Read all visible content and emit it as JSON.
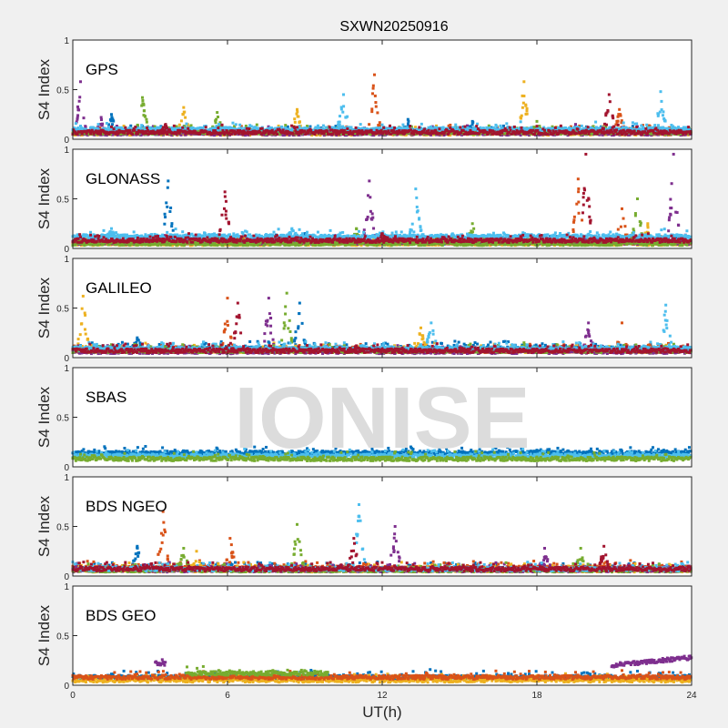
{
  "chart_data": {
    "type": "scatter",
    "title": "SXWN20250916",
    "xlabel": "UT(h)",
    "ylabel": "S4 Index",
    "xlim": [
      0,
      24
    ],
    "ylim": [
      0,
      1
    ],
    "xticks": [
      "0",
      "6",
      "12",
      "18",
      "24"
    ],
    "yticks": [
      "0",
      "0.5",
      "1"
    ],
    "watermark": "IONISE",
    "colors": [
      "#0072BD",
      "#D95319",
      "#EDB120",
      "#7E2F8E",
      "#77AC30",
      "#4DBEEE",
      "#A2142F"
    ],
    "panels": [
      {
        "label": "GPS",
        "series": [
          {
            "color": 0,
            "base": 0.07,
            "range": [
              0,
              24
            ],
            "spikes": [
              [
                1.5,
                0.25
              ],
              [
                13,
                0.2
              ],
              [
                15.5,
                0.18
              ]
            ]
          },
          {
            "color": 1,
            "base": 0.07,
            "range": [
              0,
              24
            ],
            "spikes": [
              [
                11.7,
                0.65
              ],
              [
                21.2,
                0.3
              ]
            ]
          },
          {
            "color": 2,
            "base": 0.06,
            "range": [
              0,
              24
            ],
            "spikes": [
              [
                4.3,
                0.32
              ],
              [
                8.7,
                0.3
              ],
              [
                17.5,
                0.58
              ]
            ]
          },
          {
            "color": 3,
            "base": 0.06,
            "range": [
              0,
              24
            ],
            "spikes": [
              [
                0.3,
                0.58
              ],
              [
                1.1,
                0.22
              ],
              [
                19.5,
                0.15
              ]
            ]
          },
          {
            "color": 4,
            "base": 0.07,
            "range": [
              0,
              24
            ],
            "spikes": [
              [
                2.7,
                0.42
              ],
              [
                5.6,
                0.27
              ],
              [
                18,
                0.18
              ]
            ]
          },
          {
            "color": 5,
            "base": 0.1,
            "range": [
              0,
              24
            ],
            "spikes": [
              [
                10.5,
                0.45
              ],
              [
                22.8,
                0.48
              ]
            ]
          },
          {
            "color": 6,
            "base": 0.07,
            "range": [
              0,
              24
            ],
            "spikes": [
              [
                20.8,
                0.45
              ],
              [
                3.6,
                0.15
              ]
            ]
          }
        ]
      },
      {
        "label": "GLONASS",
        "series": [
          {
            "color": 0,
            "base": 0.06,
            "range": [
              0,
              24
            ],
            "spikes": [
              [
                3.7,
                0.68
              ],
              [
                9,
                0.15
              ]
            ]
          },
          {
            "color": 1,
            "base": 0.06,
            "range": [
              0,
              24
            ],
            "spikes": [
              [
                19.6,
                0.7
              ],
              [
                21.3,
                0.4
              ]
            ]
          },
          {
            "color": 2,
            "base": 0.05,
            "range": [
              0,
              24
            ],
            "spikes": [
              [
                22.3,
                0.25
              ],
              [
                10,
                0.12
              ]
            ]
          },
          {
            "color": 3,
            "base": 0.06,
            "range": [
              0,
              24
            ],
            "spikes": [
              [
                11.5,
                0.68
              ],
              [
                23.3,
                0.95
              ]
            ]
          },
          {
            "color": 4,
            "base": 0.05,
            "range": [
              0,
              24
            ],
            "spikes": [
              [
                15.5,
                0.25
              ],
              [
                21.9,
                0.5
              ],
              [
                11,
                0.2
              ]
            ]
          },
          {
            "color": 5,
            "base": 0.12,
            "range": [
              0,
              24
            ],
            "spikes": [
              [
                1.5,
                0.2
              ],
              [
                8.5,
                0.2
              ],
              [
                13.3,
                0.6
              ]
            ]
          },
          {
            "color": 6,
            "base": 0.08,
            "range": [
              0,
              24
            ],
            "spikes": [
              [
                5.9,
                0.57
              ],
              [
                19.9,
                0.95
              ],
              [
                12,
                0.15
              ]
            ]
          }
        ]
      },
      {
        "label": "GALILEO",
        "series": [
          {
            "color": 0,
            "base": 0.09,
            "range": [
              0,
              24
            ],
            "spikes": [
              [
                8.8,
                0.55
              ],
              [
                2.5,
                0.2
              ]
            ]
          },
          {
            "color": 1,
            "base": 0.07,
            "range": [
              0,
              24
            ],
            "spikes": [
              [
                6,
                0.6
              ],
              [
                21.3,
                0.35
              ]
            ]
          },
          {
            "color": 2,
            "base": 0.07,
            "range": [
              0,
              24
            ],
            "spikes": [
              [
                0.4,
                0.62
              ],
              [
                13.5,
                0.3
              ]
            ]
          },
          {
            "color": 3,
            "base": 0.06,
            "range": [
              0,
              24
            ],
            "spikes": [
              [
                7.6,
                0.6
              ],
              [
                20,
                0.35
              ]
            ]
          },
          {
            "color": 4,
            "base": 0.07,
            "range": [
              0,
              24
            ],
            "spikes": [
              [
                8.3,
                0.65
              ],
              [
                17.5,
                0.15
              ]
            ]
          },
          {
            "color": 5,
            "base": 0.09,
            "range": [
              0,
              24
            ],
            "spikes": [
              [
                13.9,
                0.35
              ],
              [
                23,
                0.53
              ]
            ]
          },
          {
            "color": 6,
            "base": 0.07,
            "range": [
              0,
              24
            ],
            "spikes": [
              [
                6.4,
                0.55
              ],
              [
                11,
                0.12
              ]
            ]
          }
        ]
      },
      {
        "label": "SBAS",
        "series": [
          {
            "color": 0,
            "base": 0.14,
            "range": [
              0,
              24
            ],
            "spikes": []
          },
          {
            "color": 5,
            "base": 0.11,
            "range": [
              0,
              24
            ],
            "spikes": []
          },
          {
            "color": 4,
            "base": 0.08,
            "range": [
              0,
              24
            ],
            "spikes": []
          }
        ]
      },
      {
        "label": "BDS NGEO",
        "series": [
          {
            "color": 0,
            "base": 0.07,
            "range": [
              0,
              24
            ],
            "spikes": [
              [
                2.5,
                0.3
              ]
            ]
          },
          {
            "color": 1,
            "base": 0.08,
            "range": [
              0,
              24
            ],
            "spikes": [
              [
                3.5,
                0.65
              ],
              [
                6.1,
                0.38
              ]
            ]
          },
          {
            "color": 2,
            "base": 0.06,
            "range": [
              0,
              24
            ],
            "spikes": [
              [
                4.8,
                0.25
              ],
              [
                17,
                0.12
              ]
            ]
          },
          {
            "color": 3,
            "base": 0.06,
            "range": [
              0,
              24
            ],
            "spikes": [
              [
                12.5,
                0.5
              ],
              [
                18.3,
                0.28
              ]
            ]
          },
          {
            "color": 4,
            "base": 0.06,
            "range": [
              0,
              24
            ],
            "spikes": [
              [
                4.3,
                0.28
              ],
              [
                8.7,
                0.52
              ],
              [
                19.7,
                0.28
              ]
            ]
          },
          {
            "color": 5,
            "base": 0.07,
            "range": [
              0,
              24
            ],
            "spikes": [
              [
                11.1,
                0.72
              ]
            ]
          },
          {
            "color": 6,
            "base": 0.07,
            "range": [
              0,
              24
            ],
            "spikes": [
              [
                10.9,
                0.38
              ],
              [
                20.6,
                0.3
              ]
            ]
          }
        ]
      },
      {
        "label": "BDS GEO",
        "series": [
          {
            "color": 0,
            "base": 0.08,
            "range": [
              0,
              24
            ],
            "spikes": []
          },
          {
            "color": 2,
            "base": 0.05,
            "range": [
              0,
              24
            ],
            "spikes": []
          },
          {
            "color": 1,
            "base": 0.08,
            "range": [
              0,
              24
            ],
            "spikes": []
          },
          {
            "color": 4,
            "base": 0.12,
            "range": [
              4.4,
              9.9
            ],
            "spikes": []
          },
          {
            "color": 3,
            "base": 0.22,
            "range": [
              3.2,
              3.6
            ],
            "spikes": []
          },
          {
            "color": 3,
            "base": 0.2,
            "range": [
              20.9,
              24
            ],
            "trend": 0.08,
            "spikes": []
          }
        ]
      }
    ]
  }
}
